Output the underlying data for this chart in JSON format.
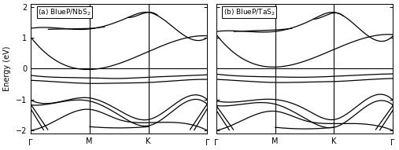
{
  "title_a": "(a) BlueP/NbS$_2$",
  "title_b": "(b) BlueP/TaS$_2$",
  "ylabel": "Energy (eV)",
  "ylim": [
    -2.1,
    2.1
  ],
  "yticks": [
    -2,
    -1,
    0,
    1,
    2
  ],
  "vline_positions": [
    0.333,
    0.667
  ],
  "hline_y": 0,
  "background_color": "#ffffff",
  "line_color": "#000000",
  "line_width": 0.9,
  "figsize": [
    5.07,
    1.91
  ],
  "dpi": 100
}
